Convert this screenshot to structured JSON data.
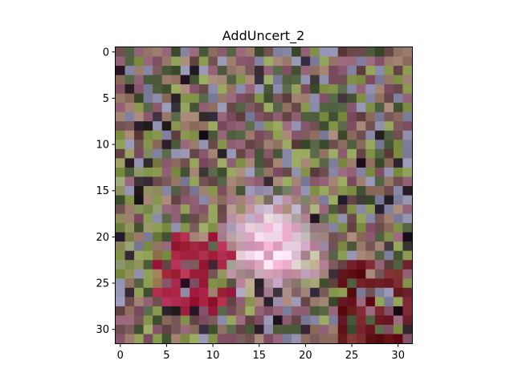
{
  "chart_data": {
    "type": "heatmap",
    "title": "AddUncert_2",
    "xlabel": "",
    "ylabel": "",
    "rows": 32,
    "cols": 32,
    "xlim": [
      -0.5,
      31.5
    ],
    "ylim": [
      31.5,
      -0.5
    ],
    "x_ticks": [
      0,
      5,
      10,
      15,
      20,
      25,
      30
    ],
    "y_ticks": [
      0,
      5,
      10,
      15,
      20,
      25,
      30
    ],
    "grid": false,
    "image_description": "32x32 RGB noisy image: mottled olive, mauve and grey background with a bright pink, lavender and white central blob and deep red patches at left-centre and bottom-right",
    "key_colors": {
      "bright_center": "#f2d9ec",
      "pink_center": "#e8a8c8",
      "red_patch": "#b0103a",
      "dark_red": "#6a0a14",
      "olive": "#8a9a50",
      "mauve": "#8c5a6e",
      "grey_blue": "#8a8aa8",
      "dark": "#1a1020"
    }
  }
}
